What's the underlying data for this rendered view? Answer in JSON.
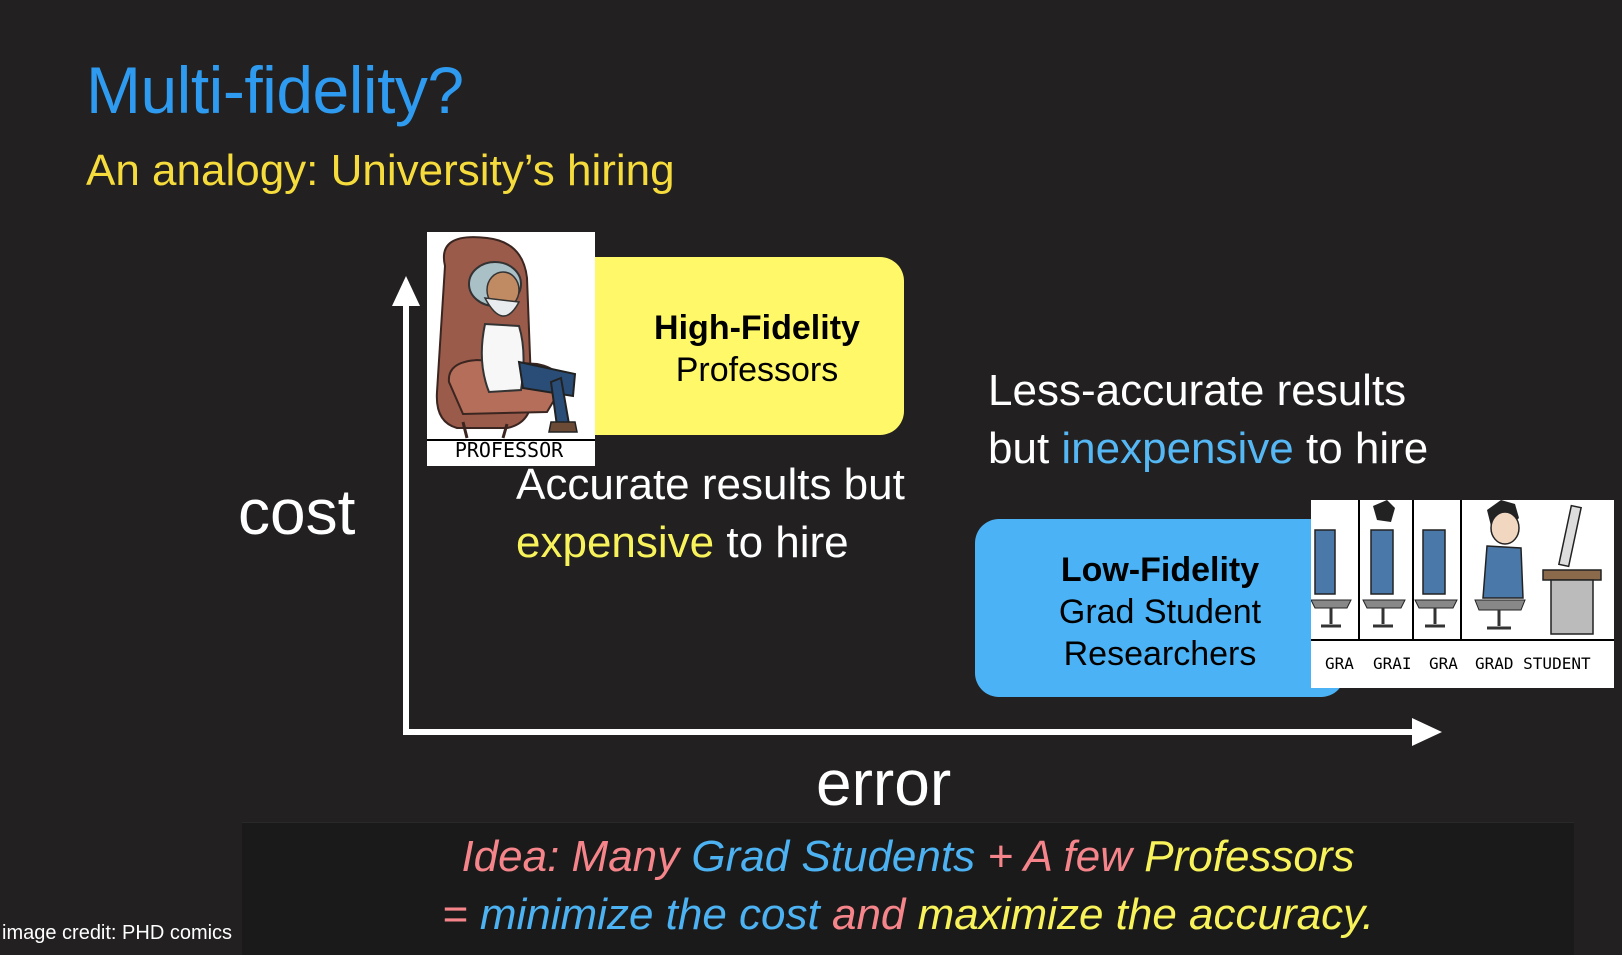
{
  "slide": {
    "title": "Multi-fidelity?",
    "subtitle": "An analogy: University’s hiring"
  },
  "axes": {
    "y_label": "cost",
    "x_label": "error"
  },
  "high_fidelity": {
    "title": "High-Fidelity",
    "subtitle": "Professors",
    "image_caption": "PROFESSOR",
    "note_line1": "Accurate results but",
    "note_highlight": "expensive",
    "note_rest": " to hire"
  },
  "low_fidelity": {
    "title": "Low-Fidelity",
    "line1": "Grad Student",
    "line2": "Researchers",
    "image_captions": [
      "GRA",
      "GRAI",
      "GRA",
      "GRAD STUDENT"
    ],
    "note_line1": "Less-accurate results",
    "note_prefix": "but ",
    "note_highlight": "inexpensive",
    "note_rest": " to hire"
  },
  "idea": {
    "l1_a": "Idea: Many ",
    "l1_b": "Grad Students",
    "l1_c": " + A few ",
    "l1_d": "Professors",
    "l2_a": "= ",
    "l2_b": "minimize",
    "l2_c": " the cost ",
    "l2_d": "and ",
    "l2_e": "maximize",
    "l2_f": " the accuracy."
  },
  "credit": "image credit: PHD comics",
  "colors": {
    "background": "#222020",
    "title_blue": "#2e9bf0",
    "subtitle_yellow": "#f5dc3c",
    "hf_box": "#fff96a",
    "lf_box": "#4bb3f5",
    "idea_pink": "#f5858a"
  }
}
